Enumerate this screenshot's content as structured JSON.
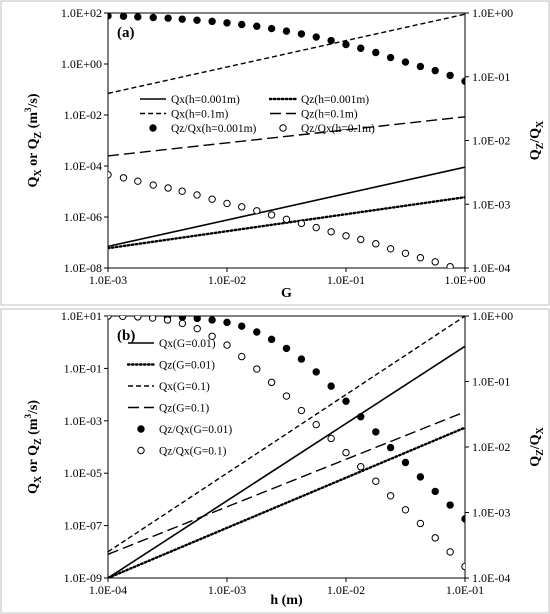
{
  "chart_data": [
    {
      "id": "a",
      "type": "line",
      "panel_label": "(a)",
      "xlabel": "G",
      "ylabel": "Q_X or Q_Z (m³/s)",
      "ylabel_parts": [
        "Q",
        "X",
        " or Q",
        "Z",
        " (m",
        "3",
        "/s)"
      ],
      "y2label": "Q_Z/Q_X",
      "y2label_parts": [
        "Q",
        "Z",
        "/Q",
        "X"
      ],
      "xscale": "log",
      "yscale": "log",
      "y2scale": "log",
      "xlim": [
        0.001,
        1
      ],
      "ylim": [
        1e-08,
        100
      ],
      "y2lim": [
        0.0001,
        1
      ],
      "x_ticks": [
        "1.0E-03",
        "1.0E-02",
        "1.0E-01",
        "1.0E+00"
      ],
      "y_ticks": [
        "1.0E-08",
        "1.0E-06",
        "1.0E-04",
        "1.0E-02",
        "1.0E+00",
        "1.0E+02"
      ],
      "y2_ticks": [
        "1.0E-04",
        "1.0E-03",
        "1.0E-02",
        "1.0E-01",
        "1.0E+00"
      ],
      "grid": false,
      "legend_position": "center-left",
      "legend_columns": 2,
      "series": [
        {
          "name": "Qx(h=0.001m)",
          "axis": "left",
          "style": "solid",
          "x": [
            0.001,
            1
          ],
          "y": [
            7e-08,
            9e-05
          ]
        },
        {
          "name": "Qz(h=0.001m)",
          "axis": "left",
          "style": "dotted",
          "x": [
            0.001,
            1
          ],
          "y": [
            6e-08,
            6e-06
          ]
        },
        {
          "name": "Qx(h=0.1m)",
          "axis": "left",
          "style": "short-dash",
          "x": [
            0.001,
            1
          ],
          "y": [
            0.07,
            90
          ]
        },
        {
          "name": "Qz(h=0.1m)",
          "axis": "left",
          "style": "long-dash",
          "x": [
            0.001,
            1
          ],
          "y": [
            0.00025,
            0.0085
          ]
        },
        {
          "name": "Qz/Qx(h=0.001m)",
          "axis": "right",
          "style": "filled-circle",
          "x": [
            0.001,
            0.00135,
            0.00178,
            0.0024,
            0.0032,
            0.0042,
            0.0056,
            0.0075,
            0.01,
            0.0133,
            0.0178,
            0.0237,
            0.0316,
            0.0422,
            0.0562,
            0.075,
            0.1,
            0.133,
            0.178,
            0.237,
            0.316,
            0.422,
            0.562,
            0.75,
            1.0
          ],
          "y": [
            0.9,
            0.89,
            0.87,
            0.85,
            0.83,
            0.8,
            0.77,
            0.74,
            0.7,
            0.66,
            0.62,
            0.57,
            0.52,
            0.47,
            0.42,
            0.37,
            0.32,
            0.28,
            0.24,
            0.2,
            0.17,
            0.145,
            0.125,
            0.105,
            0.085
          ]
        },
        {
          "name": "Qz/Qx(h=0.1m)",
          "axis": "right",
          "style": "open-circle",
          "x": [
            0.001,
            0.00135,
            0.00178,
            0.0024,
            0.0032,
            0.0042,
            0.0056,
            0.0075,
            0.01,
            0.0133,
            0.0178,
            0.0237,
            0.0316,
            0.0422,
            0.0562,
            0.075,
            0.1,
            0.133,
            0.178,
            0.237,
            0.316,
            0.422,
            0.562,
            0.75,
            1.0
          ],
          "y": [
            0.0029,
            0.0026,
            0.0023,
            0.002,
            0.0018,
            0.0016,
            0.0014,
            0.0012,
            0.00103,
            0.00091,
            0.00079,
            0.00068,
            0.00058,
            0.0005,
            0.00043,
            0.00037,
            0.00032,
            0.00028,
            0.00024,
            0.0002,
            0.00017,
            0.000145,
            0.000125,
            0.000105,
            9e-05
          ]
        }
      ]
    },
    {
      "id": "b",
      "type": "line",
      "panel_label": "(b)",
      "xlabel": "h (m)",
      "ylabel": "Q_X or Q_Z (m³/s)",
      "ylabel_parts": [
        "Q",
        "X",
        " or Q",
        "Z",
        " (m",
        "3",
        "/s)"
      ],
      "y2label": "Q_Z/Q_X",
      "y2label_parts": [
        "Q",
        "Z",
        "/Q",
        "X"
      ],
      "xscale": "log",
      "yscale": "log",
      "y2scale": "log",
      "xlim": [
        0.0001,
        0.1
      ],
      "ylim": [
        1e-09,
        10
      ],
      "y2lim": [
        0.0001,
        1
      ],
      "x_ticks": [
        "1.0E-04",
        "1.0E-03",
        "1.0E-02",
        "1.0E-01"
      ],
      "y_ticks": [
        "1.0E-09",
        "1.0E-07",
        "1.0E-05",
        "1.0E-03",
        "1.0E-01",
        "1.0E+01"
      ],
      "y2_ticks": [
        "1.0E-04",
        "1.0E-03",
        "1.0E-02",
        "1.0E-01",
        "1.0E+00"
      ],
      "grid": false,
      "legend_position": "left",
      "legend_columns": 1,
      "series": [
        {
          "name": "Qx(G=0.01)",
          "axis": "left",
          "style": "solid",
          "x": [
            0.0001,
            0.1
          ],
          "y": [
            1e-09,
            0.7
          ]
        },
        {
          "name": "Qz(G=0.01)",
          "axis": "left",
          "style": "dotted",
          "x": [
            0.0001,
            0.1
          ],
          "y": [
            1e-09,
            0.00055
          ]
        },
        {
          "name": "Qx(G=0.1)",
          "axis": "left",
          "style": "short-dash",
          "x": [
            0.0001,
            0.1
          ],
          "y": [
            1e-08,
            10
          ]
        },
        {
          "name": "Qz(G=0.1)",
          "axis": "left",
          "style": "long-dash",
          "x": [
            0.0001,
            0.1
          ],
          "y": [
            8e-09,
            0.0022
          ]
        },
        {
          "name": "Qz/Qx(G=0.01)",
          "axis": "right",
          "style": "filled-circle",
          "x": [
            0.0001,
            0.000133,
            0.000178,
            0.000237,
            0.000316,
            0.000422,
            0.000562,
            0.00075,
            0.001,
            0.00133,
            0.00178,
            0.00237,
            0.00316,
            0.00422,
            0.00562,
            0.0075,
            0.01,
            0.0133,
            0.0178,
            0.0237,
            0.0316,
            0.0422,
            0.0562,
            0.075,
            0.1
          ],
          "y": [
            1.0,
            1.0,
            1.0,
            0.99,
            0.98,
            0.96,
            0.92,
            0.87,
            0.8,
            0.7,
            0.57,
            0.44,
            0.32,
            0.22,
            0.14,
            0.085,
            0.05,
            0.029,
            0.017,
            0.0098,
            0.0058,
            0.0035,
            0.0021,
            0.0013,
            0.0008
          ]
        },
        {
          "name": "Qz/Qx(G=0.1)",
          "axis": "right",
          "style": "open-circle",
          "x": [
            0.0001,
            0.000133,
            0.000178,
            0.000237,
            0.000316,
            0.000422,
            0.000562,
            0.00075,
            0.001,
            0.00133,
            0.00178,
            0.00237,
            0.00316,
            0.00422,
            0.00562,
            0.0075,
            0.01,
            0.0133,
            0.0178,
            0.0237,
            0.0316,
            0.0422,
            0.0562,
            0.075,
            0.1
          ],
          "y": [
            1.0,
            0.99,
            0.97,
            0.93,
            0.87,
            0.77,
            0.64,
            0.49,
            0.36,
            0.24,
            0.155,
            0.097,
            0.06,
            0.036,
            0.022,
            0.0135,
            0.0082,
            0.005,
            0.003,
            0.0018,
            0.0011,
            0.00068,
            0.00041,
            0.00025,
            0.00015
          ]
        }
      ]
    }
  ]
}
